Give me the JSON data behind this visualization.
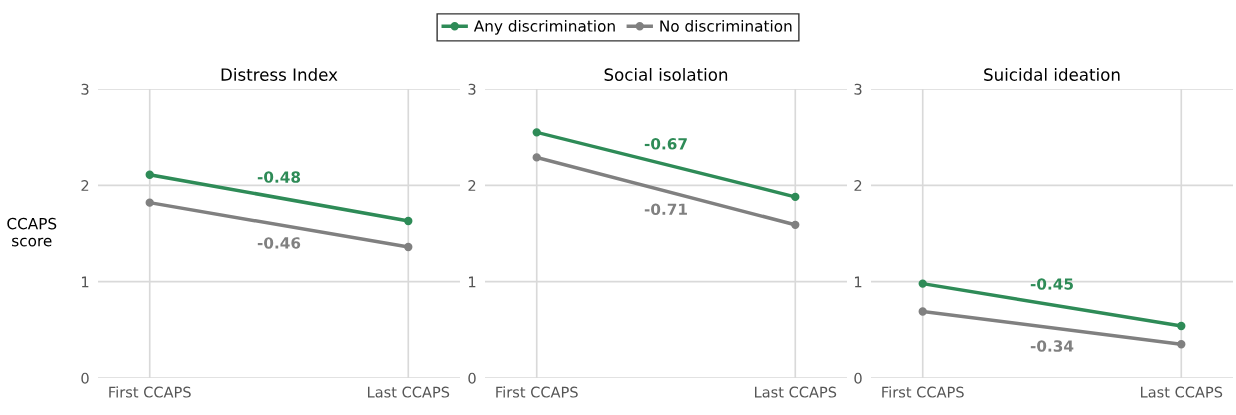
{
  "chart_data": [
    {
      "type": "line",
      "title": "Distress Index",
      "ylabel": "CCAPS\nscore",
      "categories": [
        "First CCAPS",
        "Last CCAPS"
      ],
      "ylim": [
        0,
        3
      ],
      "yticks": [
        0,
        1,
        2,
        3
      ],
      "grid": true,
      "legend": "top",
      "marker": "circle",
      "line_style": "solid",
      "series": [
        {
          "name": "Any discrimination",
          "color": "#2e8b57",
          "values": [
            2.11,
            1.63
          ]
        },
        {
          "name": "No discrimination",
          "color": "#808080",
          "values": [
            1.82,
            1.36
          ]
        }
      ],
      "annotations": [
        "-0.48",
        "-0.46"
      ]
    },
    {
      "type": "line",
      "title": "Social isolation",
      "categories": [
        "First CCAPS",
        "Last CCAPS"
      ],
      "ylim": [
        0,
        3
      ],
      "yticks": [
        0,
        1,
        2,
        3
      ],
      "grid": true,
      "marker": "circle",
      "line_style": "solid",
      "series": [
        {
          "color": "#2e8b57",
          "values": [
            2.55,
            1.88
          ]
        },
        {
          "color": "#808080",
          "values": [
            2.29,
            1.59
          ]
        }
      ],
      "annotations": [
        "-0.67",
        "-0.71"
      ]
    },
    {
      "type": "line",
      "title": "Suicidal ideation",
      "categories": [
        "First CCAPS",
        "Last CCAPS"
      ],
      "ylim": [
        0,
        3
      ],
      "yticks": [
        0,
        1,
        2,
        3
      ],
      "grid": true,
      "marker": "circle",
      "line_style": "solid",
      "series": [
        {
          "color": "#2e8b57",
          "values": [
            0.98,
            0.54
          ]
        },
        {
          "color": "#808080",
          "values": [
            0.69,
            0.35
          ]
        }
      ],
      "annotations": [
        "-0.45",
        "-0.34"
      ]
    }
  ]
}
